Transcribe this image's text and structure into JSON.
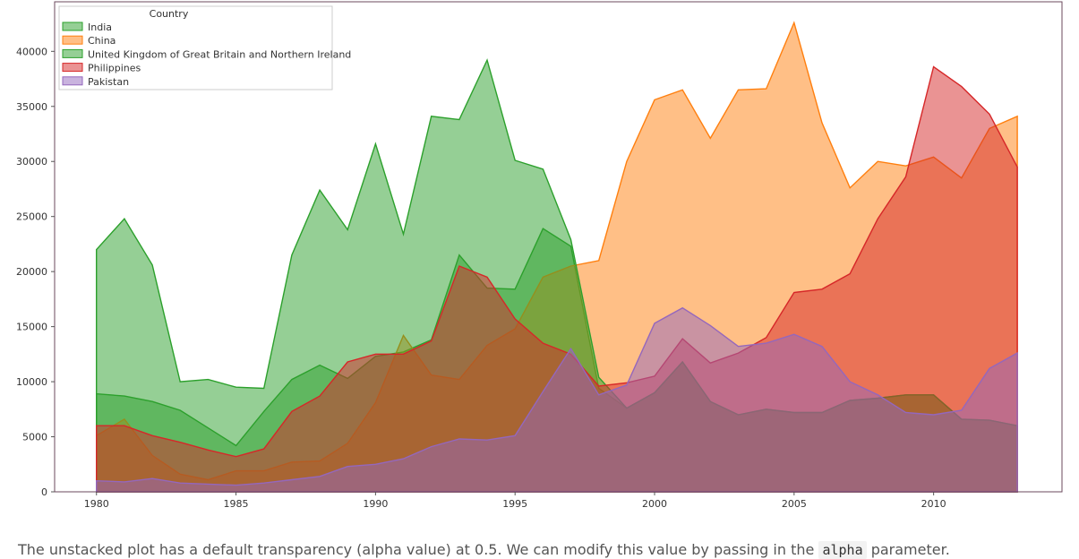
{
  "chart_data": {
    "type": "area",
    "stacked": false,
    "alpha": 0.5,
    "x": [
      1980,
      1981,
      1982,
      1983,
      1984,
      1985,
      1986,
      1987,
      1988,
      1989,
      1990,
      1991,
      1992,
      1993,
      1994,
      1995,
      1996,
      1997,
      1998,
      1999,
      2000,
      2001,
      2002,
      2003,
      2004,
      2005,
      2006,
      2007,
      2008,
      2009,
      2010,
      2011,
      2012,
      2013
    ],
    "xticks": [
      1980,
      1985,
      1990,
      1995,
      2000,
      2005,
      2010
    ],
    "xlim": [
      1978.5,
      2014.6
    ],
    "ylim": [
      0,
      44500
    ],
    "yticks": [
      0,
      5000,
      10000,
      15000,
      20000,
      25000,
      30000,
      35000,
      40000
    ],
    "legend_title": "Country",
    "legend_position": "upper left",
    "series": [
      {
        "name": "India",
        "color": "#2ca02c",
        "values": [
          8900,
          8700,
          8200,
          7400,
          5800,
          4200,
          7300,
          10200,
          11500,
          10300,
          12300,
          12700,
          13800,
          21500,
          18500,
          18400,
          23900,
          22300,
          9400,
          7600,
          9000,
          11800,
          8200,
          7000,
          7500,
          7200,
          7200,
          8300,
          8500,
          8800,
          8800,
          6600,
          6500,
          6000
        ]
      },
      {
        "name": "China",
        "color": "#ff7f0e",
        "values": [
          5100,
          6600,
          3300,
          1600,
          1100,
          1900,
          1900,
          2700,
          2800,
          4400,
          8100,
          14200,
          10600,
          10200,
          13300,
          14800,
          19500,
          20500,
          21000,
          30000,
          35600,
          36500,
          32100,
          36500,
          36600,
          42600,
          33500,
          27600,
          30000,
          29600,
          30400,
          28500,
          33000,
          34100
        ]
      },
      {
        "name": "United Kingdom of Great Britain and Northern Ireland",
        "color": "#2ca02c",
        "values": [
          22000,
          24800,
          20600,
          10000,
          10200,
          9500,
          9400,
          21500,
          27400,
          23800,
          31600,
          23400,
          34100,
          33800,
          39200,
          30100,
          29300,
          22900,
          10400,
          7600,
          9000,
          11800,
          8200,
          7000,
          7500,
          7200,
          7200,
          8300,
          8500,
          8800,
          8800,
          6600,
          6500,
          6000
        ]
      },
      {
        "name": "Philippines",
        "color": "#d62728",
        "values": [
          6000,
          6000,
          5100,
          4500,
          3800,
          3200,
          3900,
          7300,
          8700,
          11800,
          12500,
          12500,
          13700,
          20500,
          19500,
          15700,
          13500,
          12500,
          9600,
          9900,
          10500,
          13900,
          11700,
          12600,
          14000,
          18100,
          18400,
          19800,
          24800,
          28600,
          38600,
          36800,
          34300,
          29500
        ]
      },
      {
        "name": "Pakistan",
        "color": "#9467bd",
        "values": [
          1000,
          900,
          1200,
          800,
          700,
          600,
          800,
          1100,
          1400,
          2300,
          2500,
          3000,
          4100,
          4800,
          4700,
          5100,
          9100,
          13000,
          8800,
          9700,
          15300,
          16700,
          15100,
          13200,
          13500,
          14300,
          13200,
          10000,
          8800,
          7200,
          7000,
          7400,
          11200,
          12600
        ]
      }
    ]
  },
  "caption": {
    "before": "The unstacked plot has a default transparency (alpha value) at 0.5. We can modify this value by passing in the",
    "code": "alpha",
    "after": "parameter."
  }
}
